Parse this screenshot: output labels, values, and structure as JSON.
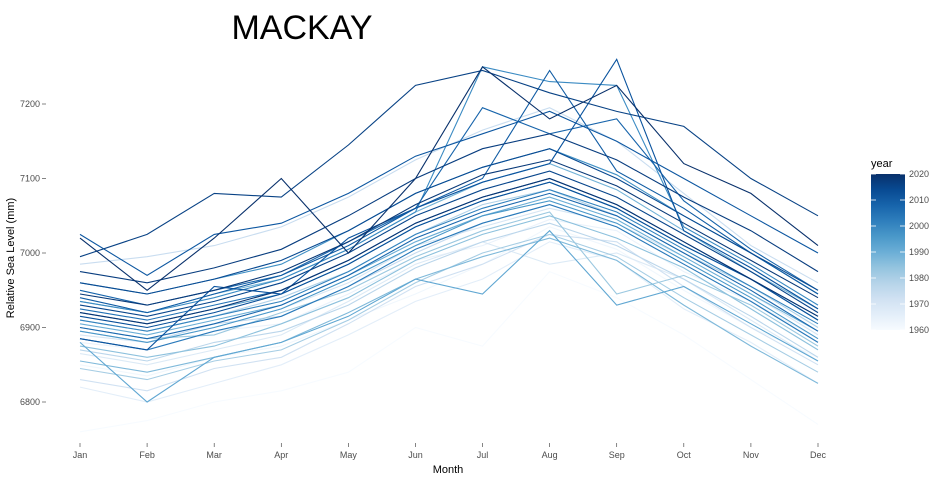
{
  "chart_data": {
    "type": "line",
    "title": "MACKAY",
    "xlabel": "Month",
    "ylabel": "Relative Sea Level (mm)",
    "categories": [
      "Jan",
      "Feb",
      "Mar",
      "Apr",
      "May",
      "Jun",
      "Jul",
      "Aug",
      "Sep",
      "Oct",
      "Nov",
      "Dec"
    ],
    "ylim": [
      6755,
      7265
    ],
    "yticks": [
      6800,
      6900,
      7000,
      7100,
      7200
    ],
    "grid": false,
    "legend": {
      "title": "year",
      "position": "right",
      "type": "colorbar",
      "range": [
        1960,
        2020
      ],
      "ticks": [
        1960,
        1970,
        1980,
        1990,
        2000,
        2010,
        2020
      ],
      "low_color": "#f7fbff",
      "high_color": "#08306b"
    },
    "series": [
      {
        "year": 1960,
        "values": [
          6760,
          6775,
          6800,
          6815,
          6840,
          6900,
          6875,
          6975,
          6940,
          6890,
          6830,
          6770
        ]
      },
      {
        "year": 1962,
        "values": [
          6850,
          6835,
          6860,
          6875,
          6910,
          6945,
          6985,
          7035,
          7005,
          6950,
          6900,
          6860
        ]
      },
      {
        "year": 1964,
        "values": [
          6880,
          6870,
          6895,
          6905,
          6945,
          6990,
          7010,
          7045,
          7030,
          6975,
          6935,
          6885
        ]
      },
      {
        "year": 1966,
        "values": [
          6820,
          6800,
          6825,
          6850,
          6890,
          6935,
          6965,
          7015,
          6990,
          6925,
          6880,
          6825
        ]
      },
      {
        "year": 1968,
        "values": [
          6865,
          6850,
          6870,
          6890,
          6935,
          6985,
          7015,
          6985,
          7000,
          6965,
          6910,
          6855
        ]
      },
      {
        "year": 1970,
        "values": [
          6890,
          6880,
          6900,
          6925,
          6960,
          7010,
          7035,
          7060,
          7040,
          6995,
          6945,
          6890
        ]
      },
      {
        "year": 1972,
        "values": [
          6830,
          6815,
          6845,
          6860,
          6905,
          6955,
          6985,
          7025,
          7015,
          6955,
          6900,
          6850
        ]
      },
      {
        "year": 1974,
        "values": [
          6985,
          6995,
          7010,
          7035,
          7075,
          7125,
          7165,
          7195,
          7150,
          7080,
          7010,
          6960
        ]
      },
      {
        "year": 1975,
        "values": [
          6895,
          6880,
          6905,
          6915,
          6955,
          7000,
          7040,
          7065,
          7035,
          6985,
          6935,
          6880
        ]
      },
      {
        "year": 1977,
        "values": [
          6870,
          6855,
          6880,
          6895,
          6930,
          6980,
          7015,
          7040,
          7010,
          6965,
          6915,
          6860
        ]
      },
      {
        "year": 1979,
        "values": [
          6910,
          6895,
          6915,
          6940,
          6975,
          7025,
          7065,
          7085,
          7050,
          7000,
          6955,
          6900
        ]
      },
      {
        "year": 1981,
        "values": [
          6845,
          6830,
          6855,
          6870,
          6910,
          6960,
          7000,
          7025,
          6995,
          6940,
          6890,
          6840
        ]
      },
      {
        "year": 1983,
        "values": [
          6900,
          6885,
          6890,
          6920,
          6950,
          6995,
          7030,
          7055,
          6945,
          6970,
          6930,
          6875
        ]
      },
      {
        "year": 1985,
        "values": [
          6875,
          6860,
          6875,
          6905,
          6940,
          6990,
          7025,
          7050,
          7020,
          6980,
          6925,
          6870
        ]
      },
      {
        "year": 1987,
        "values": [
          6855,
          6840,
          6860,
          6880,
          6920,
          6965,
          6995,
          7020,
          6990,
          6930,
          6875,
          6825
        ]
      },
      {
        "year": 1989,
        "values": [
          6935,
          6920,
          6945,
          6965,
          7005,
          7055,
          7095,
          7120,
          7085,
          7030,
          6975,
          6925
        ]
      },
      {
        "year": 1990,
        "values": [
          6905,
          6890,
          6910,
          6930,
          6970,
          7015,
          7050,
          7075,
          7045,
          6995,
          6945,
          6895
        ]
      },
      {
        "year": 1992,
        "values": [
          6880,
          6800,
          6860,
          6880,
          6915,
          6965,
          6945,
          7030,
          6930,
          6955,
          6905,
          6855
        ]
      },
      {
        "year": 1994,
        "values": [
          6920,
          6905,
          6925,
          6945,
          6985,
          7035,
          7070,
          7095,
          7060,
          7010,
          6965,
          6910
        ]
      },
      {
        "year": 1996,
        "values": [
          6895,
          6880,
          6900,
          6925,
          6965,
          7010,
          7050,
          7070,
          7040,
          6990,
          6940,
          6885
        ]
      },
      {
        "year": 1998,
        "values": [
          6960,
          6945,
          6965,
          6985,
          7030,
          7080,
          7115,
          7140,
          7105,
          7050,
          7000,
          6945
        ]
      },
      {
        "year": 1999,
        "values": [
          6935,
          6920,
          6940,
          6965,
          7005,
          7055,
          7250,
          7230,
          7225,
          7035,
          6985,
          6930
        ]
      },
      {
        "year": 2001,
        "values": [
          6910,
          6895,
          6915,
          6935,
          6975,
          7025,
          7060,
          7085,
          7055,
          7005,
          6955,
          6905
        ]
      },
      {
        "year": 2003,
        "values": [
          6885,
          6870,
          6895,
          6915,
          6955,
          7005,
          7040,
          7065,
          7035,
          6985,
          6935,
          6880
        ]
      },
      {
        "year": 2005,
        "values": [
          6925,
          6910,
          6930,
          6950,
          6990,
          7040,
          7075,
          7100,
          7065,
          7015,
          6965,
          6915
        ]
      },
      {
        "year": 2007,
        "values": [
          6900,
          6885,
          6905,
          6930,
          6970,
          7020,
          7055,
          7080,
          7050,
          7000,
          6950,
          6895
        ]
      },
      {
        "year": 2008,
        "values": [
          6950,
          6930,
          6950,
          6970,
          7015,
          7060,
          7195,
          7160,
          7180,
          7070,
          7005,
          6950
        ]
      },
      {
        "year": 2010,
        "values": [
          6940,
          6920,
          6945,
          6970,
          7010,
          7060,
          7100,
          7245,
          7110,
          7060,
          7000,
          6945
        ]
      },
      {
        "year": 2011,
        "values": [
          7025,
          6970,
          7025,
          7040,
          7080,
          7130,
          7160,
          7190,
          7150,
          7100,
          7050,
          7000
        ]
      },
      {
        "year": 2012,
        "values": [
          6885,
          6870,
          6955,
          6945,
          7020,
          7060,
          7095,
          7120,
          7260,
          7030,
          6980,
          6925
        ]
      },
      {
        "year": 2013,
        "values": [
          6915,
          6900,
          6920,
          6945,
          6985,
          7035,
          7070,
          7095,
          7060,
          7010,
          6965,
          6910
        ]
      },
      {
        "year": 2014,
        "values": [
          6960,
          6945,
          6965,
          6990,
          7030,
          7080,
          7115,
          7140,
          7100,
          7050,
          7000,
          6950
        ]
      },
      {
        "year": 2015,
        "values": [
          6930,
          6915,
          6935,
          6960,
          7000,
          7050,
          7085,
          7110,
          7075,
          7025,
          6975,
          6920
        ]
      },
      {
        "year": 2016,
        "values": [
          6995,
          7025,
          7080,
          7075,
          7145,
          7225,
          7245,
          7215,
          7190,
          7170,
          7100,
          7050
        ]
      },
      {
        "year": 2017,
        "values": [
          6975,
          6960,
          6980,
          7005,
          7050,
          7100,
          7140,
          7160,
          7125,
          7075,
          7030,
          6975
        ]
      },
      {
        "year": 2018,
        "values": [
          6945,
          6930,
          6950,
          6975,
          7015,
          7065,
          7105,
          7125,
          7090,
          7040,
          6990,
          6940
        ]
      },
      {
        "year": 2019,
        "values": [
          6920,
          6905,
          6925,
          6950,
          6990,
          7040,
          7075,
          7100,
          7065,
          7015,
          6965,
          6915
        ]
      },
      {
        "year": 2020,
        "values": [
          7020,
          6950,
          7020,
          7100,
          7000,
          7100,
          7250,
          7180,
          7225,
          7120,
          7080,
          7010
        ]
      }
    ]
  }
}
